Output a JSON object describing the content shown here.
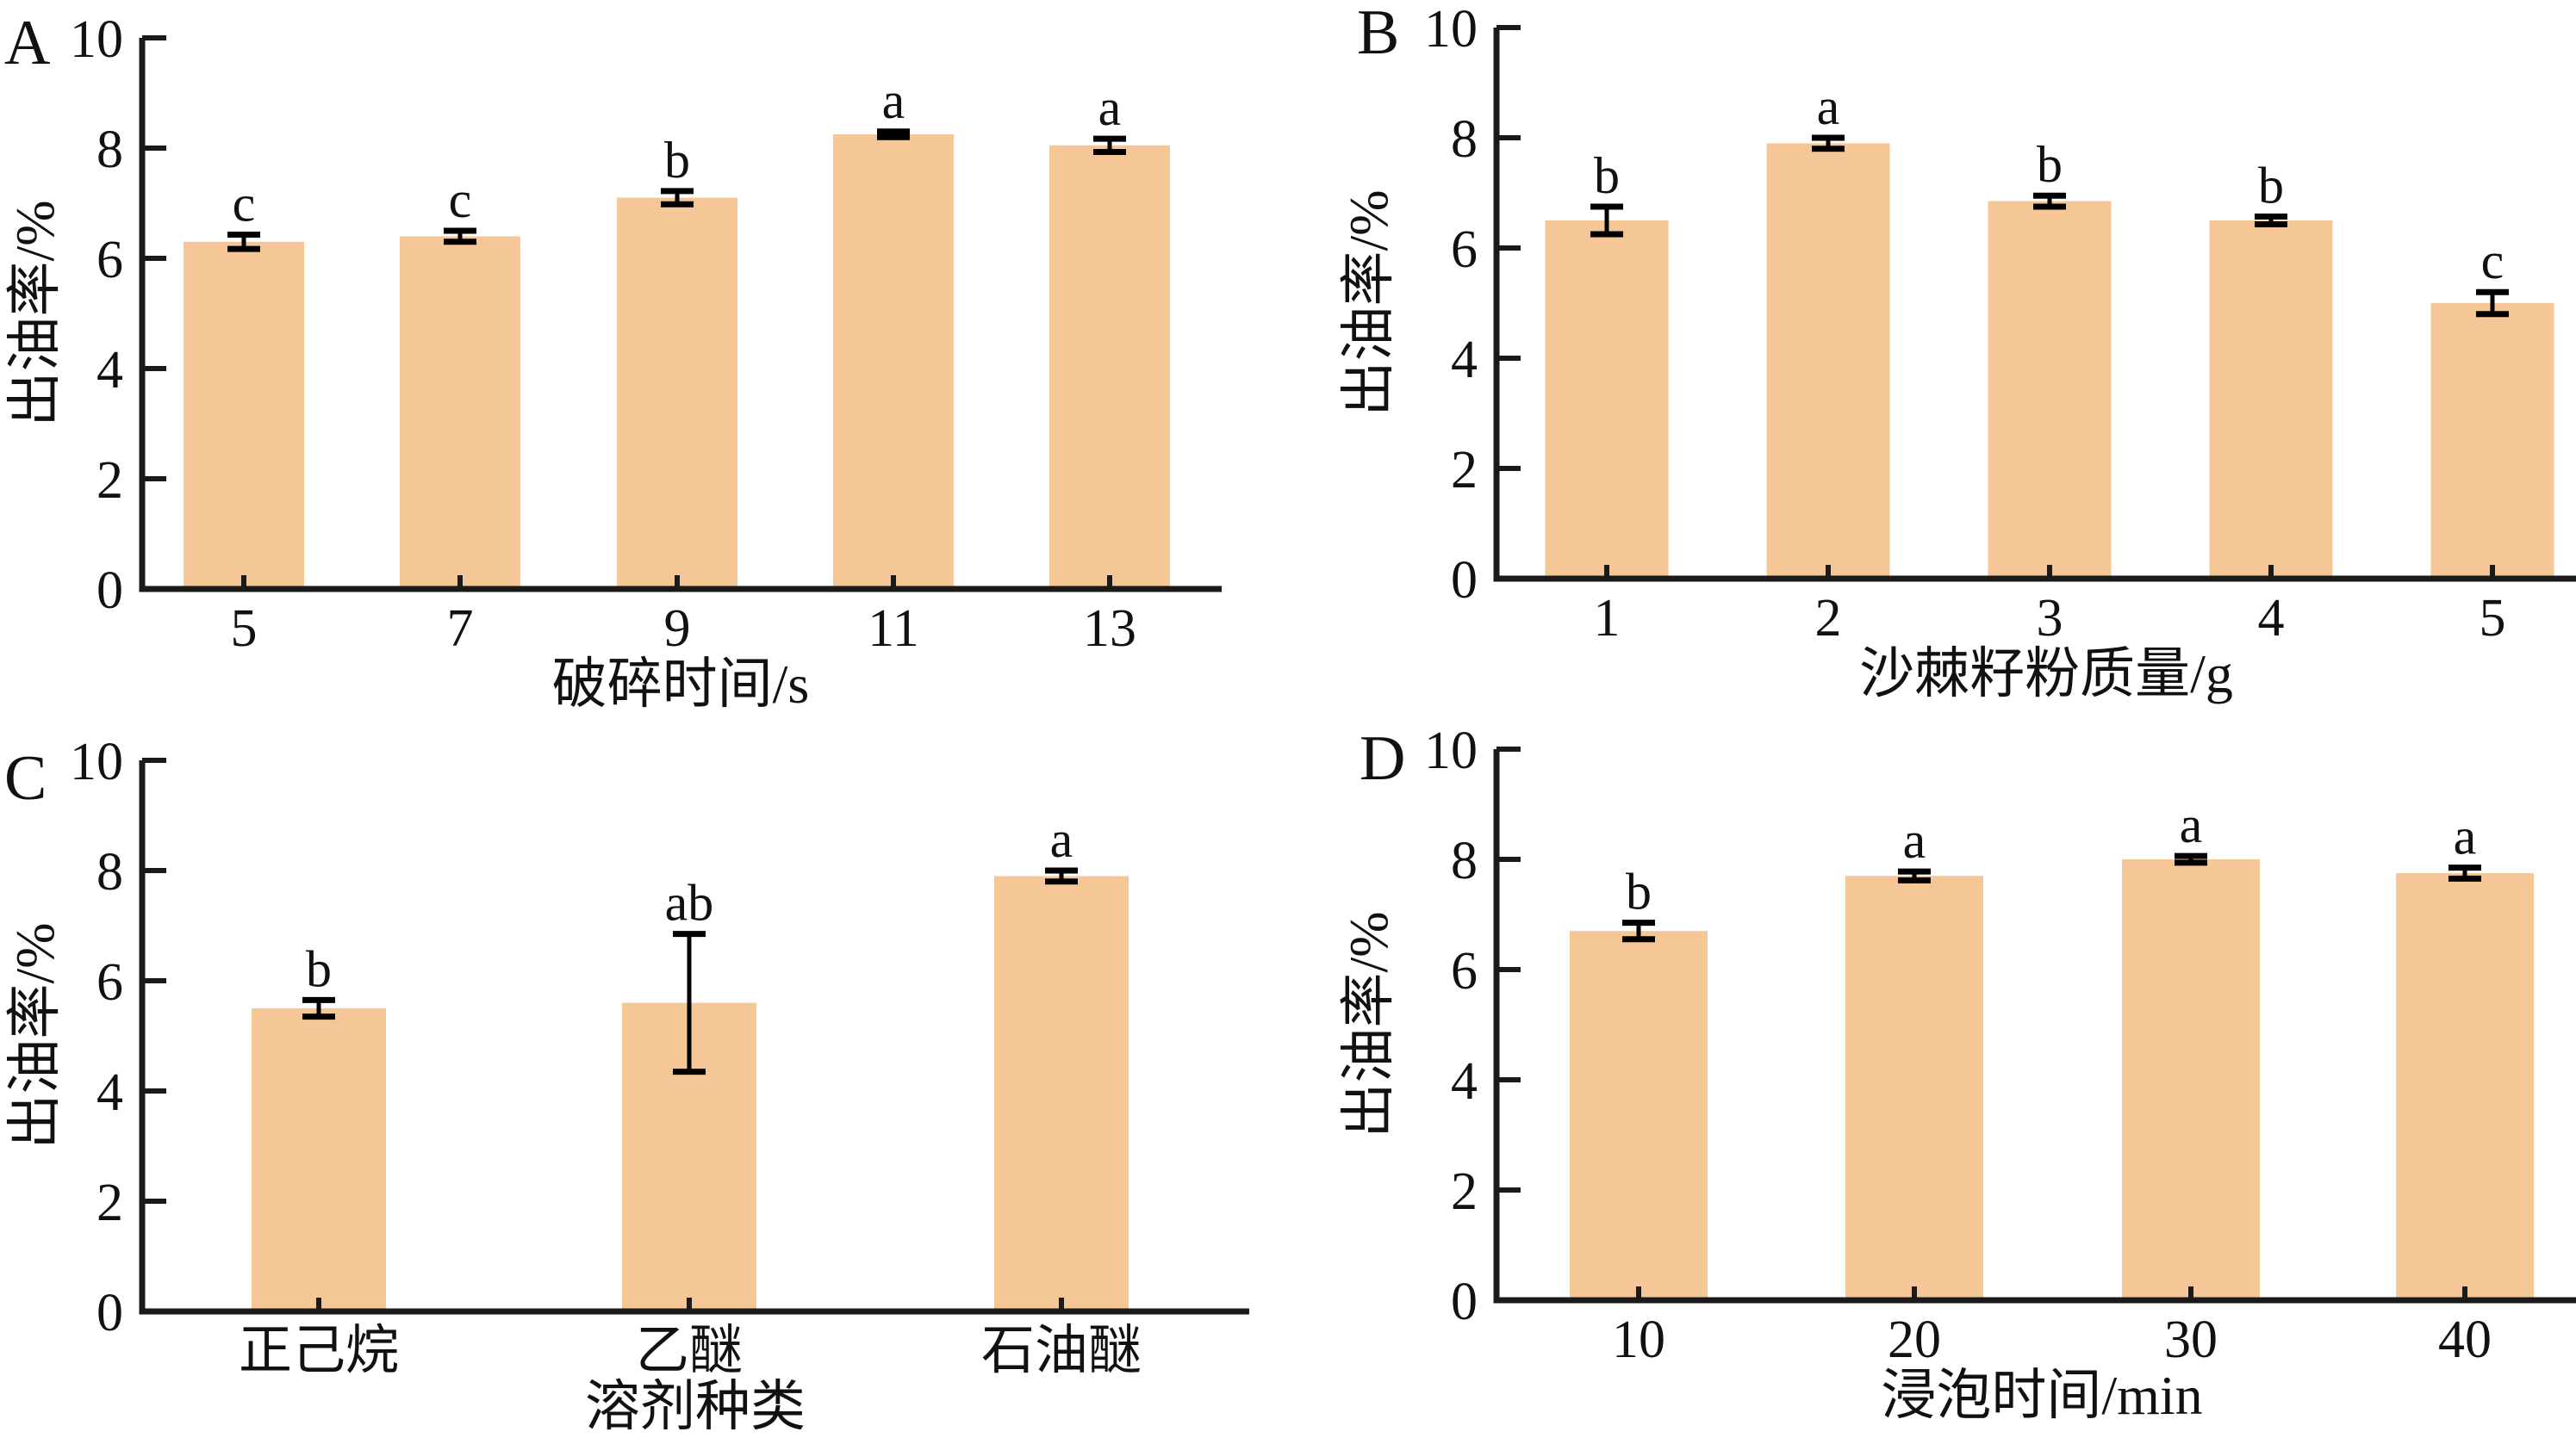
{
  "style": {
    "background": "#ffffff",
    "bar_color": "#F6C796",
    "axis_color": "#1a1a1a",
    "error_bar_color": "#000000",
    "text_color": "#111111"
  },
  "chart_data": [
    {
      "type": "bar",
      "panel_letter": "A",
      "ylabel": "出油率/%",
      "xlabel": "破碎时间/s",
      "ylim": [
        0,
        10
      ],
      "yticks": [
        0,
        2,
        4,
        6,
        8,
        10
      ],
      "grid": false,
      "legend": "none",
      "categories": [
        "5",
        "7",
        "9",
        "11",
        "13"
      ],
      "values": [
        6.3,
        6.4,
        7.1,
        8.25,
        8.05
      ],
      "errors": [
        0.13,
        0.1,
        0.12,
        0.05,
        0.12
      ],
      "sig_letters": [
        "c",
        "c",
        "b",
        "a",
        "a"
      ]
    },
    {
      "type": "bar",
      "panel_letter": "B",
      "ylabel": "出油率/%",
      "xlabel": "沙棘籽粉质量/g",
      "ylim": [
        0,
        10
      ],
      "yticks": [
        0,
        2,
        4,
        6,
        8,
        10
      ],
      "grid": false,
      "legend": "none",
      "categories": [
        "1",
        "2",
        "3",
        "4",
        "5"
      ],
      "values": [
        6.5,
        7.9,
        6.85,
        6.5,
        5.0
      ],
      "errors": [
        0.25,
        0.1,
        0.1,
        0.07,
        0.2
      ],
      "sig_letters": [
        "b",
        "a",
        "b",
        "b",
        "c"
      ]
    },
    {
      "type": "bar",
      "panel_letter": "C",
      "ylabel": "出油率/%",
      "xlabel": "溶剂种类",
      "ylim": [
        0,
        10
      ],
      "yticks": [
        0,
        2,
        4,
        6,
        8,
        10
      ],
      "grid": false,
      "legend": "none",
      "categories": [
        "正己烷",
        "乙醚",
        "石油醚"
      ],
      "values": [
        5.5,
        5.6,
        7.9
      ],
      "errors": [
        0.15,
        1.25,
        0.1
      ],
      "sig_letters": [
        "b",
        "ab",
        "a"
      ]
    },
    {
      "type": "bar",
      "panel_letter": "D",
      "ylabel": "出油率/%",
      "xlabel": "浸泡时间/min",
      "ylim": [
        0,
        10
      ],
      "yticks": [
        0,
        2,
        4,
        6,
        8,
        10
      ],
      "grid": false,
      "legend": "none",
      "categories": [
        "10",
        "20",
        "30",
        "40"
      ],
      "values": [
        6.7,
        7.7,
        8.0,
        7.75
      ],
      "errors": [
        0.15,
        0.08,
        0.06,
        0.1
      ],
      "sig_letters": [
        "b",
        "a",
        "a",
        "a"
      ]
    }
  ]
}
